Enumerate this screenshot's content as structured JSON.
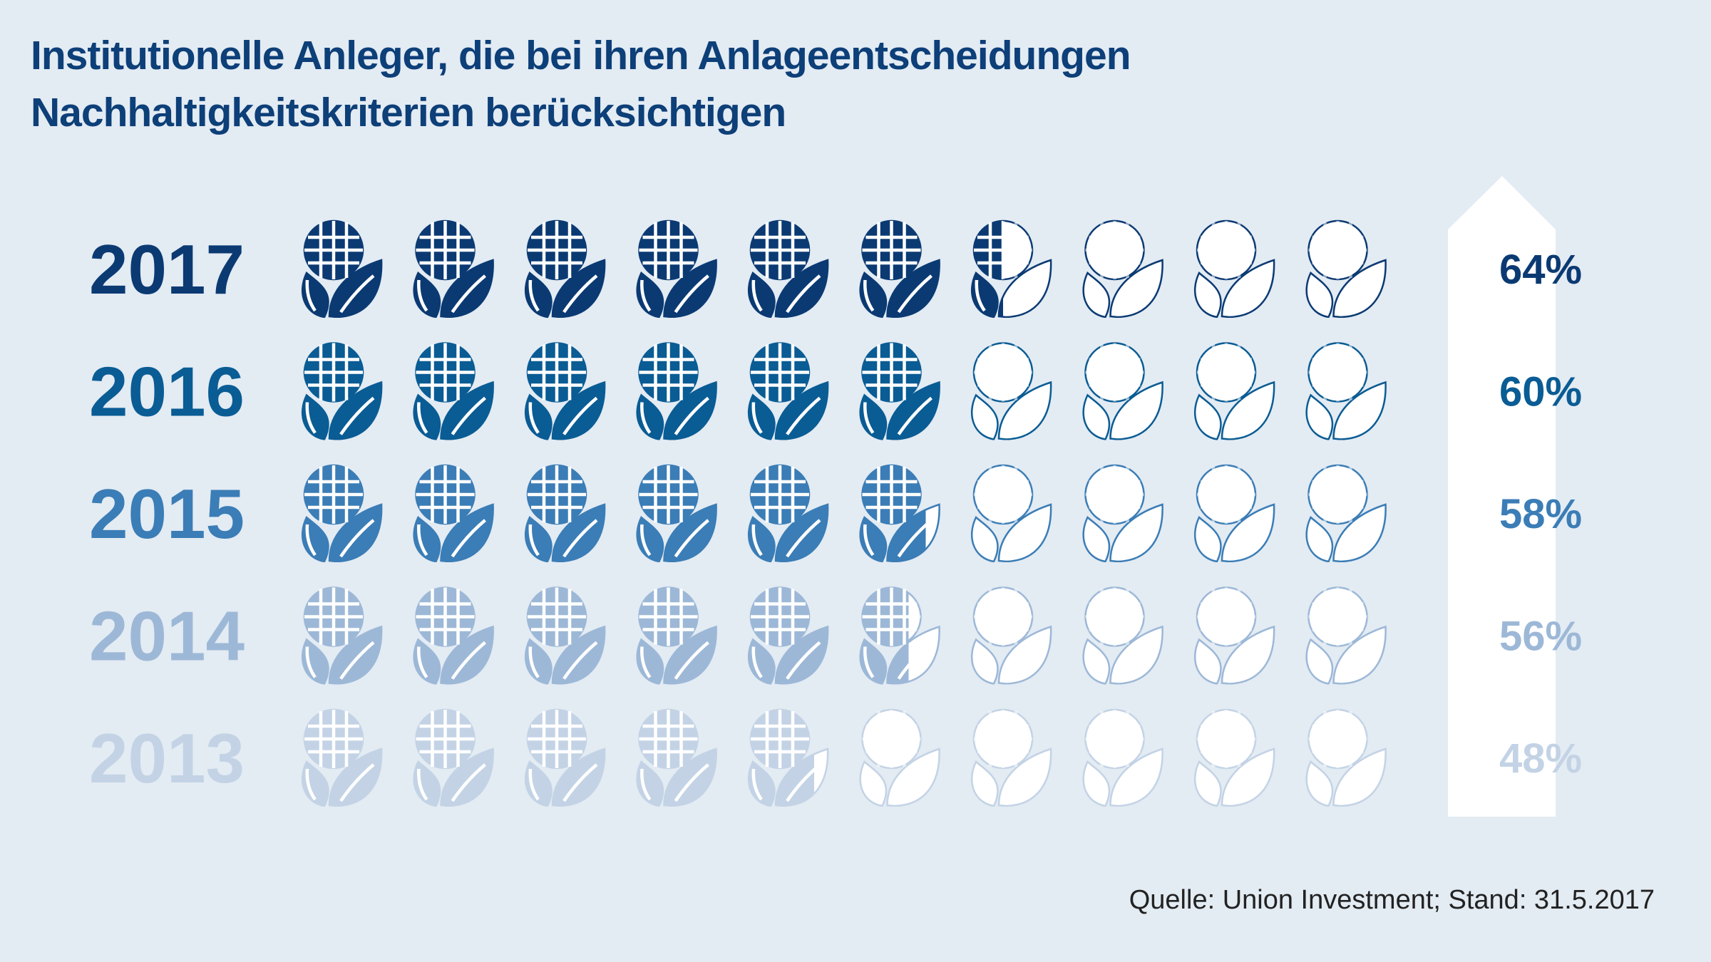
{
  "title_line1": "Institutionelle Anleger, die bei ihren Anlageentscheidungen",
  "title_line2": "Nachhaltigkeitskriterien berücksichtigen",
  "source": "Quelle: Union Investment; Stand: 31.5.2017",
  "icon": "globe-with-leaves-icon",
  "chart_data": {
    "type": "pictogram",
    "units_per_row": 10,
    "unit_value_percent": 10,
    "series": [
      {
        "year": "2017",
        "value": 64,
        "label": "64%",
        "color": "#0b3a73"
      },
      {
        "year": "2016",
        "value": 60,
        "label": "60%",
        "color": "#0a5c94"
      },
      {
        "year": "2015",
        "value": 58,
        "label": "58%",
        "color": "#3b7db6"
      },
      {
        "year": "2014",
        "value": 56,
        "label": "56%",
        "color": "#9db8d7"
      },
      {
        "year": "2013",
        "value": 48,
        "label": "48%",
        "color": "#c3d3e5"
      }
    ]
  }
}
